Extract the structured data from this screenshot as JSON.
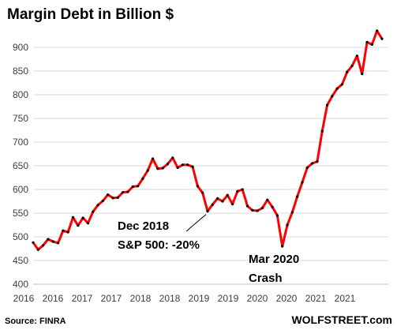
{
  "chart_data": {
    "type": "line",
    "title": "Margin Debt in Billion $",
    "xlabel": "",
    "ylabel": "",
    "ylim": [
      400,
      950
    ],
    "yticks": [
      400,
      450,
      500,
      550,
      600,
      650,
      700,
      750,
      800,
      850,
      900
    ],
    "xtick_labels": [
      "2016",
      "2016",
      "2017",
      "2017",
      "2018",
      "2018",
      "2019",
      "2019",
      "2020",
      "2020",
      "2021",
      "2021"
    ],
    "grid": true,
    "legend": "none",
    "line_color": "#ff0000",
    "marker_color": "#000000",
    "series": [
      {
        "values": [
          488,
          473,
          482,
          495,
          490,
          487,
          513,
          510,
          541,
          524,
          540,
          529,
          553,
          567,
          576,
          589,
          582,
          583,
          594,
          595,
          606,
          607,
          623,
          640,
          665,
          644,
          645,
          654,
          667,
          646,
          652,
          652,
          648,
          607,
          593,
          554,
          568,
          581,
          575,
          588,
          569,
          596,
          600,
          565,
          556,
          555,
          561,
          578,
          563,
          545,
          480,
          525,
          552,
          585,
          615,
          646,
          655,
          659,
          723,
          778,
          797,
          813,
          822,
          848,
          861,
          882,
          844,
          911,
          906,
          935,
          918
        ]
      }
    ],
    "annotations": [
      {
        "lines": [
          "Dec 2018",
          "S&P 500: -20%"
        ]
      },
      {
        "lines": [
          "Mar 2020",
          "Crash"
        ]
      }
    ],
    "source": "Source: FINRA",
    "brand": "WOLFSTREET.com"
  }
}
